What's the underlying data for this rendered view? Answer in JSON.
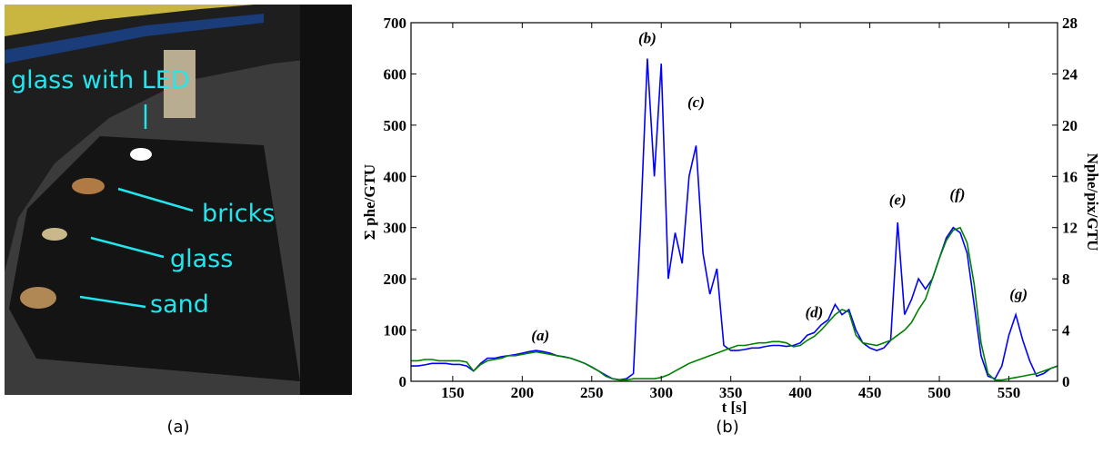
{
  "photo": {
    "labels": [
      "glass with LED",
      "bricks",
      "glass",
      "sand"
    ]
  },
  "figure_captions": [
    "(a)",
    "(b)"
  ],
  "chart_data": {
    "type": "line",
    "xlabel": "t [s]",
    "ylabel": "Σ phe/GTU",
    "y2label": "Nphe/pix/GTU",
    "x": [
      120,
      125,
      130,
      135,
      140,
      145,
      150,
      155,
      160,
      165,
      170,
      175,
      180,
      185,
      190,
      195,
      200,
      205,
      210,
      215,
      220,
      225,
      230,
      235,
      240,
      245,
      250,
      255,
      260,
      265,
      270,
      275,
      280,
      285,
      290,
      295,
      300,
      305,
      310,
      315,
      320,
      325,
      330,
      335,
      340,
      345,
      350,
      355,
      360,
      365,
      370,
      375,
      380,
      385,
      390,
      395,
      400,
      405,
      410,
      415,
      420,
      425,
      430,
      435,
      440,
      445,
      450,
      455,
      460,
      465,
      470,
      475,
      480,
      485,
      490,
      495,
      500,
      505,
      510,
      515,
      520,
      525,
      530,
      535,
      540,
      545,
      550,
      555,
      560,
      565,
      570,
      575,
      580,
      585
    ],
    "series": [
      {
        "color": "#0000ff",
        "values": [
          30,
          30,
          32,
          35,
          35,
          35,
          33,
          33,
          30,
          20,
          35,
          45,
          45,
          48,
          50,
          52,
          55,
          58,
          60,
          58,
          55,
          50,
          48,
          45,
          40,
          35,
          28,
          20,
          12,
          5,
          3,
          5,
          15,
          300,
          630,
          400,
          620,
          200,
          290,
          230,
          400,
          460,
          250,
          170,
          220,
          70,
          60,
          60,
          62,
          65,
          65,
          68,
          70,
          70,
          68,
          70,
          75,
          90,
          95,
          110,
          120,
          150,
          130,
          140,
          100,
          75,
          65,
          60,
          65,
          80,
          310,
          130,
          160,
          200,
          180,
          200,
          240,
          280,
          300,
          290,
          250,
          150,
          50,
          10,
          5,
          30,
          90,
          130,
          80,
          40,
          10,
          15,
          25,
          30
        ]
      },
      {
        "color": "#008000",
        "axis": "y2",
        "values": [
          1.6,
          1.6,
          1.7,
          1.7,
          1.6,
          1.6,
          1.6,
          1.6,
          1.5,
          0.8,
          1.3,
          1.6,
          1.7,
          1.8,
          2.0,
          2.0,
          2.1,
          2.2,
          2.3,
          2.2,
          2.1,
          2.0,
          1.9,
          1.8,
          1.6,
          1.4,
          1.1,
          0.8,
          0.4,
          0.2,
          0.1,
          0.1,
          0.2,
          0.2,
          0.2,
          0.2,
          0.3,
          0.5,
          0.8,
          1.1,
          1.4,
          1.6,
          1.8,
          2.0,
          2.2,
          2.4,
          2.6,
          2.8,
          2.8,
          2.9,
          3.0,
          3.0,
          3.1,
          3.1,
          3.0,
          2.7,
          2.8,
          3.2,
          3.5,
          4.0,
          4.6,
          5.2,
          5.6,
          5.4,
          3.6,
          3.0,
          2.9,
          2.8,
          3.0,
          3.2,
          3.6,
          4.0,
          4.6,
          5.6,
          6.4,
          8.0,
          9.6,
          11.0,
          11.8,
          12.0,
          10.8,
          7.6,
          3.0,
          0.6,
          0.1,
          0.1,
          0.2,
          0.3,
          0.4,
          0.5,
          0.6,
          0.8,
          1.0,
          1.2
        ]
      }
    ],
    "xlim": [
      120,
      585
    ],
    "xticks": [
      150,
      200,
      250,
      300,
      350,
      400,
      450,
      500,
      550
    ],
    "ylim": [
      0,
      700
    ],
    "yticks": [
      0,
      100,
      200,
      300,
      400,
      500,
      600,
      700
    ],
    "y2lim": [
      0,
      28
    ],
    "y2ticks": [
      0,
      4,
      8,
      12,
      16,
      20,
      24,
      28
    ],
    "annotations": [
      {
        "text": "(a)",
        "x": 213,
        "y": 80
      },
      {
        "text": "(b)",
        "x": 290,
        "y": 660
      },
      {
        "text": "(c)",
        "x": 325,
        "y": 535
      },
      {
        "text": "(d)",
        "x": 410,
        "y": 125
      },
      {
        "text": "(e)",
        "x": 470,
        "y": 345
      },
      {
        "text": "(f)",
        "x": 513,
        "y": 355
      },
      {
        "text": "(g)",
        "x": 557,
        "y": 160
      }
    ]
  }
}
